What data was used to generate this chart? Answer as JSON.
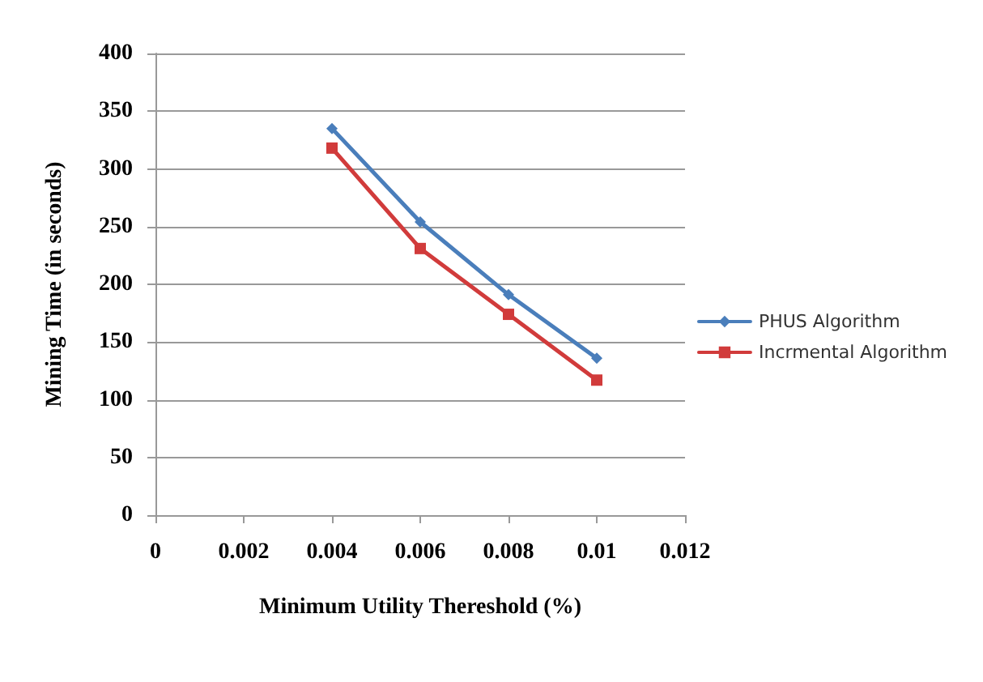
{
  "chart_data": {
    "type": "line",
    "xlabel": "Minimum Utility Thereshold (%)",
    "ylabel": "Mining Time (in seconds)",
    "x": [
      0.004,
      0.006,
      0.008,
      0.01
    ],
    "series": [
      {
        "name": "PHUS Algorithm",
        "color": "#4a7ebb",
        "marker": "diamond",
        "values": [
          335,
          254,
          191,
          136
        ]
      },
      {
        "name": "Incrmental Algorithm",
        "color": "#d13b3b",
        "marker": "square",
        "values": [
          318,
          231,
          174,
          117
        ]
      }
    ],
    "xlim": [
      0,
      0.012
    ],
    "xticks": [
      0,
      0.002,
      0.004,
      0.006,
      0.008,
      0.01,
      0.012
    ],
    "ylim": [
      0,
      400
    ],
    "yticks": [
      0,
      50,
      100,
      150,
      200,
      250,
      300,
      350,
      400
    ],
    "grid": "y",
    "legend": "right"
  }
}
